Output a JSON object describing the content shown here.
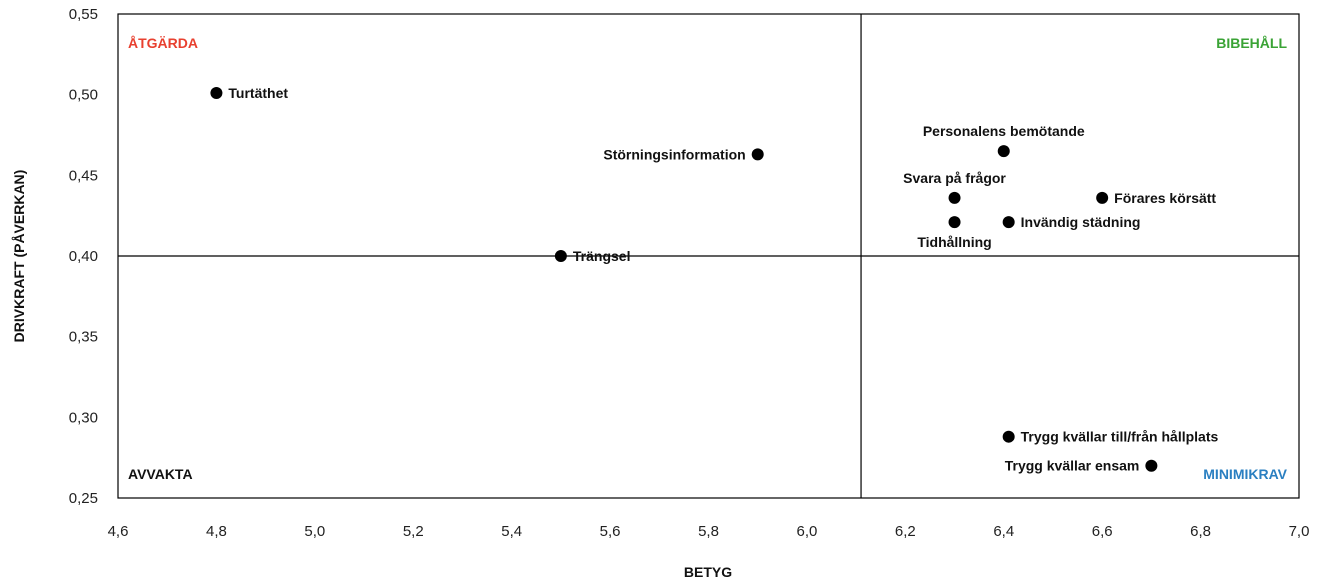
{
  "chart_data": {
    "type": "scatter",
    "title": "",
    "xlabel": "BETYG",
    "ylabel": "DRIVKRAFT (PÅVERKAN)",
    "xlim": [
      4.6,
      7.0
    ],
    "ylim": [
      0.25,
      0.55
    ],
    "x_ticks": [
      "4,6",
      "4,8",
      "5,0",
      "5,2",
      "5,4",
      "5,6",
      "5,8",
      "6,0",
      "6,2",
      "6,4",
      "6,6",
      "6,8",
      "7,0"
    ],
    "y_ticks": [
      "0,25",
      "0,30",
      "0,35",
      "0,40",
      "0,45",
      "0,50",
      "0,55"
    ],
    "x_tick_values": [
      4.6,
      4.8,
      5.0,
      5.2,
      5.4,
      5.6,
      5.8,
      6.0,
      6.2,
      6.4,
      6.6,
      6.8,
      7.0
    ],
    "y_tick_values": [
      0.25,
      0.3,
      0.35,
      0.4,
      0.45,
      0.5,
      0.55
    ],
    "divider_x": 6.11,
    "divider_y": 0.4,
    "grid": false,
    "quadrants": [
      {
        "label": "ÅTGÄRDA",
        "position": "top-left",
        "color": "#e8402f"
      },
      {
        "label": "BIBEHÅLL",
        "position": "top-right",
        "color": "#3aa335"
      },
      {
        "label": "AVVAKTA",
        "position": "bottom-left",
        "color": "#111111"
      },
      {
        "label": "MINIMIKRAV",
        "position": "bottom-right",
        "color": "#2a7fc1"
      }
    ],
    "points": [
      {
        "label": "Turtäthet",
        "x": 4.8,
        "y": 0.501,
        "label_side": "right"
      },
      {
        "label": "Störningsinformation",
        "x": 5.9,
        "y": 0.463,
        "label_side": "left"
      },
      {
        "label": "Trängsel",
        "x": 5.5,
        "y": 0.4,
        "label_side": "right"
      },
      {
        "label": "Personalens bemötande",
        "x": 6.4,
        "y": 0.465,
        "label_side": "above"
      },
      {
        "label": "Svara på frågor",
        "x": 6.3,
        "y": 0.436,
        "label_side": "above"
      },
      {
        "label": "Förares körsätt",
        "x": 6.6,
        "y": 0.436,
        "label_side": "right"
      },
      {
        "label": "Tidhållning",
        "x": 6.3,
        "y": 0.421,
        "label_side": "below"
      },
      {
        "label": "Invändig städning",
        "x": 6.41,
        "y": 0.421,
        "label_side": "right"
      },
      {
        "label": "Trygg kvällar till/från hållplats",
        "x": 6.41,
        "y": 0.288,
        "label_side": "right"
      },
      {
        "label": "Trygg kvällar ensam",
        "x": 6.7,
        "y": 0.27,
        "label_side": "left"
      }
    ],
    "point_color": "#000000",
    "frame_color": "#000000"
  }
}
